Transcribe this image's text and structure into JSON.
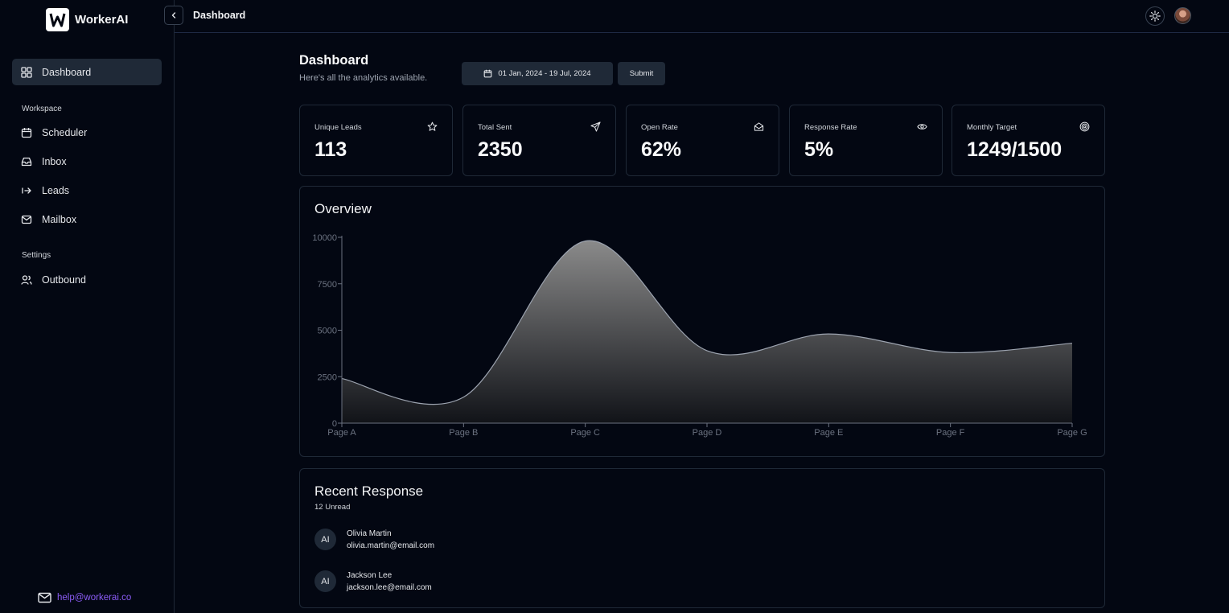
{
  "app": {
    "name": "WorkerAI"
  },
  "topbar": {
    "title": "Dashboard"
  },
  "sidebar": {
    "active": {
      "label": "Dashboard"
    },
    "workspace_label": "Workspace",
    "workspace_items": [
      {
        "label": "Scheduler",
        "icon": "calendar-icon"
      },
      {
        "label": "Inbox",
        "icon": "inbox-icon"
      },
      {
        "label": "Leads",
        "icon": "leads-icon"
      },
      {
        "label": "Mailbox",
        "icon": "mail-icon"
      }
    ],
    "settings_label": "Settings",
    "settings_items": [
      {
        "label": "Outbound",
        "icon": "users-icon"
      }
    ],
    "help_email": "help@workerai.co"
  },
  "header": {
    "title": "Dashboard",
    "subtitle": "Here's all the analytics available.",
    "date_range": "01 Jan, 2024 - 19 Jul, 2024",
    "submit_label": "Submit"
  },
  "stats": [
    {
      "label": "Unique Leads",
      "value": "113",
      "icon": "star-icon"
    },
    {
      "label": "Total Sent",
      "value": "2350",
      "icon": "send-icon"
    },
    {
      "label": "Open Rate",
      "value": "62%",
      "icon": "mail-open-icon"
    },
    {
      "label": "Response Rate",
      "value": "5%",
      "icon": "eye-icon"
    },
    {
      "label": "Monthly Target",
      "value": "1249/1500",
      "icon": "target-icon"
    }
  ],
  "overview": {
    "title": "Overview"
  },
  "chart_data": {
    "type": "area",
    "title": "Overview",
    "categories": [
      "Page A",
      "Page B",
      "Page C",
      "Page D",
      "Page E",
      "Page F",
      "Page G"
    ],
    "series": [
      {
        "values": [
          2400,
          1400,
          9800,
          3900,
          4800,
          3800,
          4300
        ]
      }
    ],
    "yticks": [
      "0",
      "2500",
      "5000",
      "7500",
      "10000"
    ],
    "ylim": [
      0,
      10000
    ],
    "grid": false,
    "legend": "none",
    "color": "#9ca3af"
  },
  "recent": {
    "title": "Recent Response",
    "unread": "12 Unread",
    "items": [
      {
        "initials": "AI",
        "name": "Olivia Martin",
        "email": "olivia.martin@email.com"
      },
      {
        "initials": "AI",
        "name": "Jackson Lee",
        "email": "jackson.lee@email.com"
      }
    ]
  }
}
